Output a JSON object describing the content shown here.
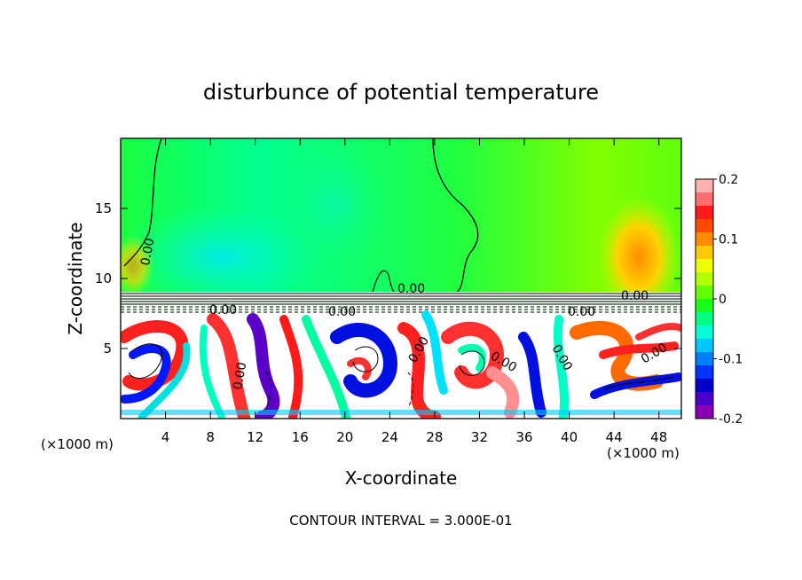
{
  "chart_data": {
    "type": "heatmap",
    "title": "disturbunce of potential temperature",
    "xlabel": "X-coordinate",
    "ylabel": "Z-coordinate",
    "x_unit_label": "(×1000 m)",
    "y_unit_label": "(×1000 m)",
    "xlim": [
      0,
      50
    ],
    "ylim": [
      0,
      20
    ],
    "x_ticks": [
      4,
      8,
      12,
      16,
      20,
      24,
      28,
      32,
      36,
      40,
      44,
      48
    ],
    "y_ticks": [
      5,
      10,
      15
    ],
    "colorbar": {
      "range": [
        -0.2,
        0.2
      ],
      "tick_labels": [
        "0.2",
        "0.1",
        "0",
        "-0.1",
        "-0.2"
      ],
      "tick_values": [
        0.2,
        0.1,
        0,
        -0.1,
        -0.2
      ],
      "colors": [
        "#ffb0b0",
        "#ff6e6e",
        "#ff1a1a",
        "#ff4a00",
        "#ff8c00",
        "#ffc800",
        "#f0ff00",
        "#b4ff00",
        "#64ff00",
        "#1aff1a",
        "#00ff80",
        "#00ffd2",
        "#00c8ff",
        "#0080ff",
        "#0033ff",
        "#0000c8",
        "#4a00c8",
        "#8c00b4"
      ]
    },
    "contour_labels": [
      "0.00",
      "0.00",
      "0.00",
      "0.00",
      "0.00",
      "0.00",
      "0.00",
      "0.00",
      "0.00",
      "0.00",
      "0.00"
    ],
    "footnote": "CONTOUR INTERVAL = 3.000E-01"
  }
}
